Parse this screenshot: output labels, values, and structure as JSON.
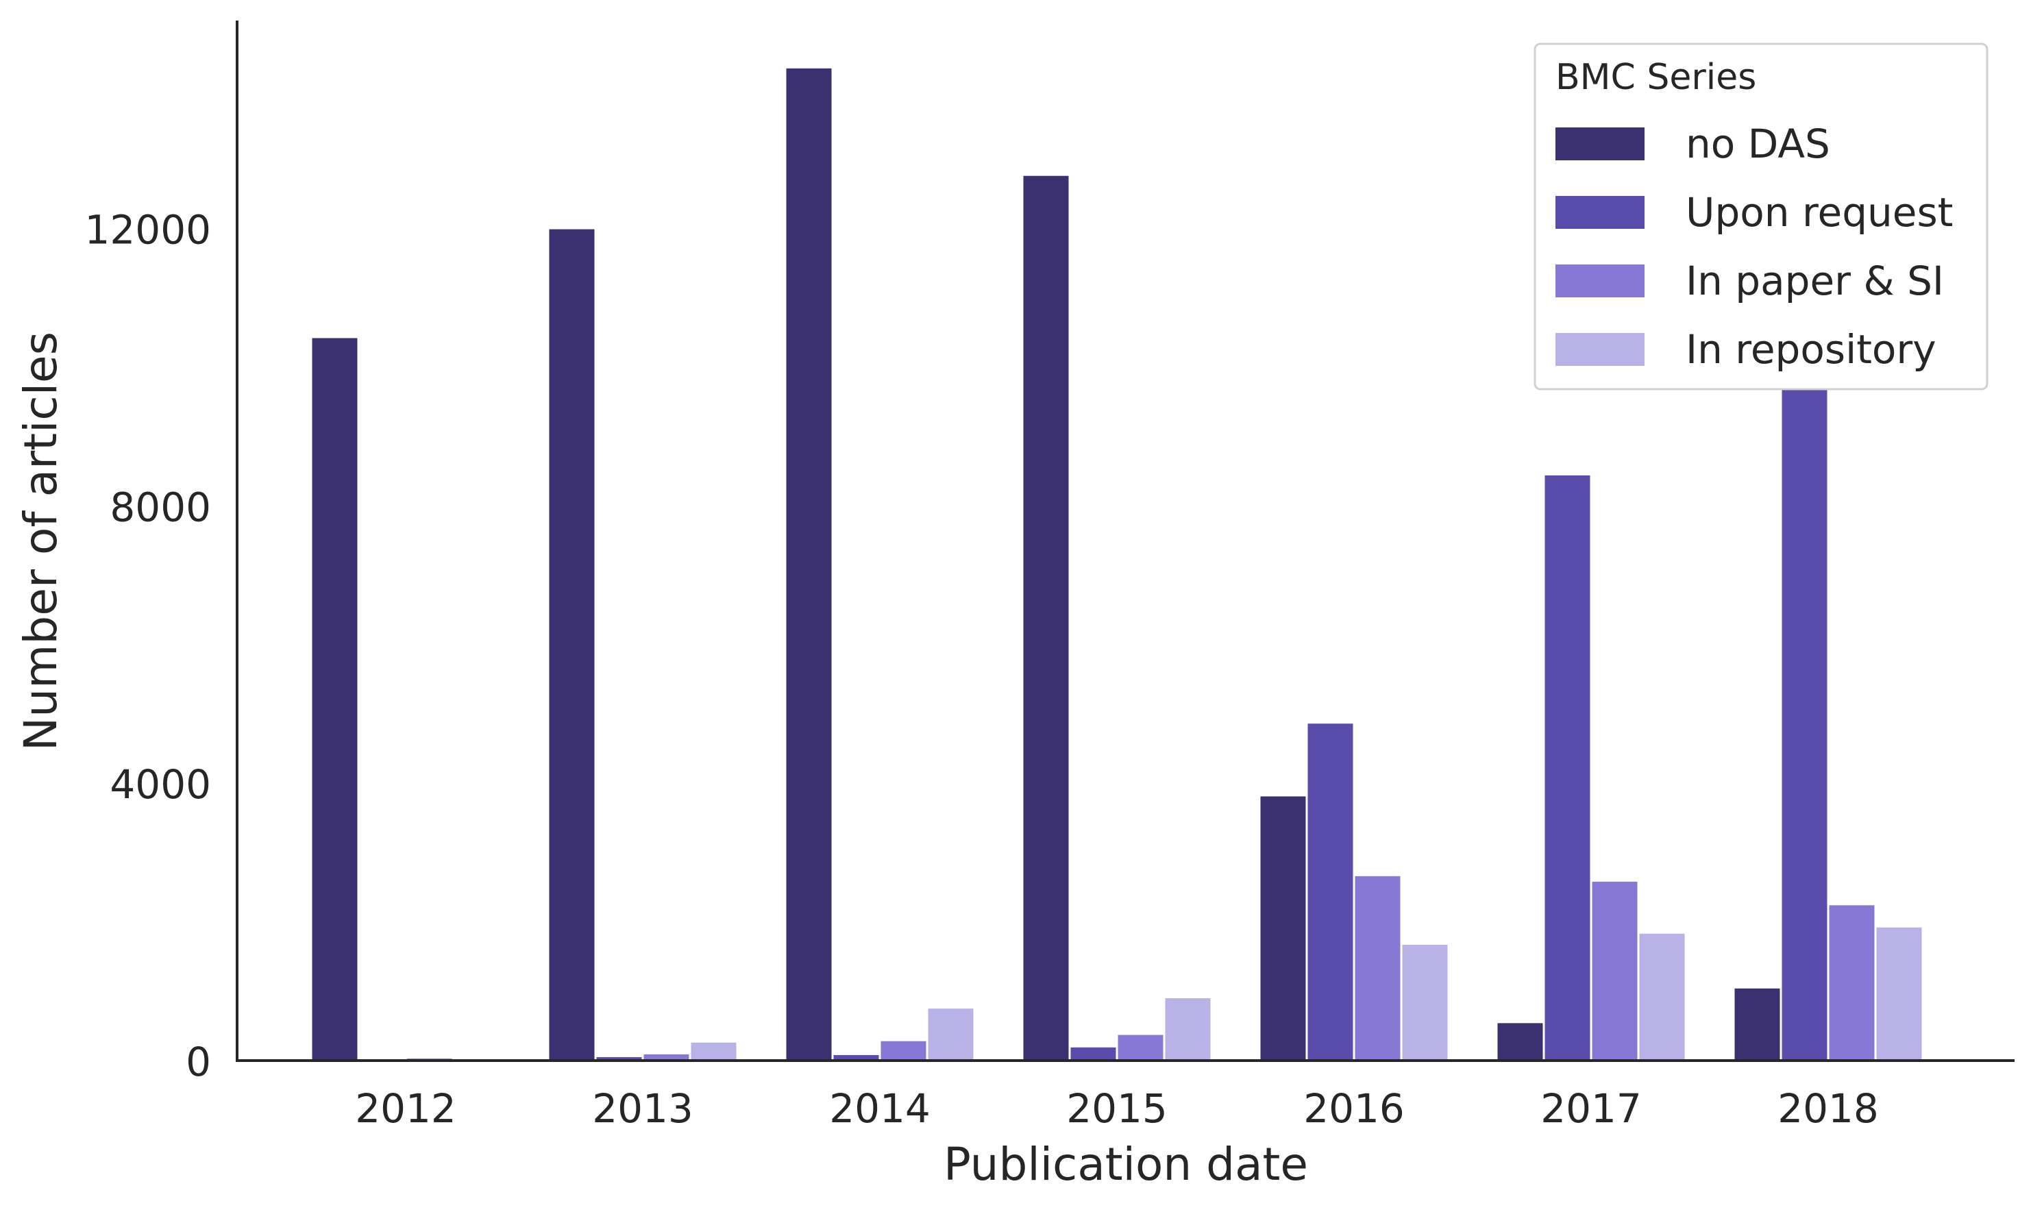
{
  "chart_data": {
    "type": "bar",
    "xlabel": "Publication date",
    "ylabel": "Number of articles",
    "ylim": [
      0,
      15000
    ],
    "yticks": [
      0,
      4000,
      8000,
      12000
    ],
    "categories": [
      "2012",
      "2013",
      "2014",
      "2015",
      "2016",
      "2017",
      "2018"
    ],
    "legend": {
      "title": "BMC Series",
      "placement": "top-right"
    },
    "series": [
      {
        "name": "no DAS",
        "color": "#3b3070",
        "values": [
          10420,
          11990,
          14310,
          12760,
          3810,
          540,
          1040
        ]
      },
      {
        "name": "Upon request",
        "color": "#5a4caa",
        "values": [
          20,
          50,
          80,
          190,
          4860,
          8440,
          9830
        ]
      },
      {
        "name": "In paper & SI",
        "color": "#8878d6",
        "values": [
          30,
          90,
          280,
          370,
          2660,
          2580,
          2240
        ]
      },
      {
        "name": "In repository",
        "color": "#b9b2e6",
        "values": [
          20,
          260,
          750,
          900,
          1670,
          1830,
          1920
        ]
      }
    ],
    "grid": false
  }
}
